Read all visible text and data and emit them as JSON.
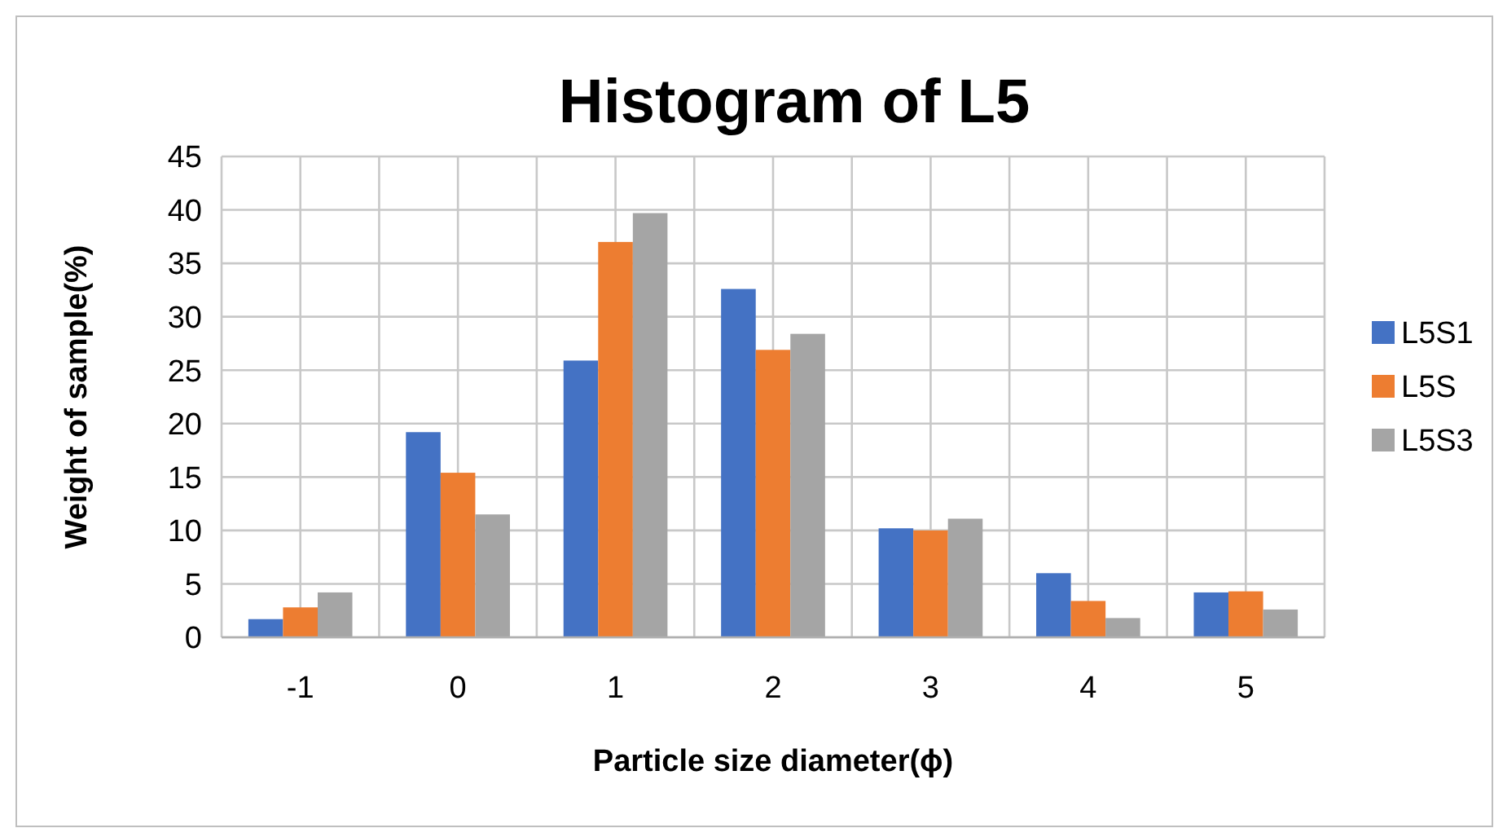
{
  "chart_data": {
    "type": "bar",
    "title": "Histogram of L5",
    "xlabel": "Particle size diameter(ϕ)",
    "ylabel": "Weight of sample(%)",
    "categories": [
      "-1",
      "0",
      "1",
      "2",
      "3",
      "4",
      "5"
    ],
    "series": [
      {
        "name": "L5S1",
        "color": "#4472c4",
        "values": [
          1.7,
          19.2,
          25.9,
          32.6,
          10.2,
          6.0,
          4.2
        ]
      },
      {
        "name": "L5S",
        "color": "#ed7d31",
        "values": [
          2.8,
          15.4,
          37.0,
          26.9,
          10.0,
          3.4,
          4.3
        ]
      },
      {
        "name": "L5S3",
        "color": "#a5a5a5",
        "values": [
          4.2,
          11.5,
          39.7,
          28.4,
          11.1,
          1.8,
          2.6
        ]
      }
    ],
    "ylim": [
      0,
      45
    ],
    "yticks": [
      0,
      5,
      10,
      15,
      20,
      25,
      30,
      35,
      40,
      45
    ],
    "grid": true,
    "legend": "right"
  }
}
